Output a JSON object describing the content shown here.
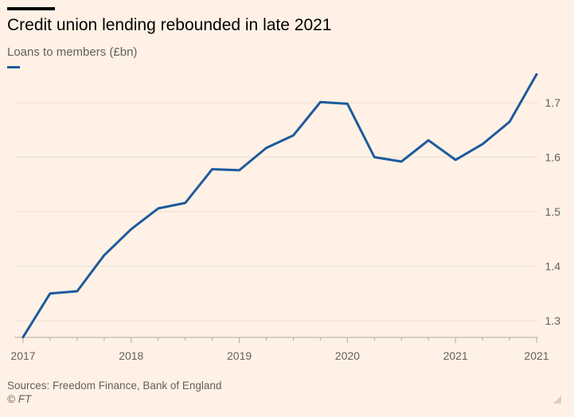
{
  "header": {
    "title": "Credit union lending rebounded in late 2021",
    "subtitle": "Loans to members (£bn)"
  },
  "footer": {
    "source": "Sources: Freedom Finance, Bank of England",
    "credit": "© FT"
  },
  "colors": {
    "background": "#fff1e5",
    "series": "#1d5a9c",
    "grid": "#e9dfd6",
    "tick_text": "#66605c"
  },
  "chart_data": {
    "type": "line",
    "title": "Credit union lending rebounded in late 2021",
    "subtitle": "Loans to members (£bn)",
    "xlabel": "",
    "ylabel": "",
    "x_ticks": [
      "2017",
      "2018",
      "2019",
      "2020",
      "2021",
      "2021"
    ],
    "y_ticks": [
      1.3,
      1.4,
      1.5,
      1.6,
      1.7
    ],
    "ylim": [
      1.27,
      1.75
    ],
    "y_axis_side": "right",
    "grid": true,
    "legend": "top-left swatch",
    "x": [
      "2017 Q1",
      "2017 Q2",
      "2017 Q3",
      "2017 Q4",
      "2018 Q1",
      "2018 Q2",
      "2018 Q3",
      "2018 Q4",
      "2019 Q1",
      "2019 Q2",
      "2019 Q3",
      "2019 Q4",
      "2020 Q1",
      "2020 Q2",
      "2020 Q3",
      "2020 Q4",
      "2021 Q1",
      "2021 Q2",
      "2021 Q3",
      "2021 Q4"
    ],
    "series": [
      {
        "values": [
          1.27,
          1.35,
          1.354,
          1.42,
          1.468,
          1.506,
          1.516,
          1.578,
          1.576,
          1.617,
          1.64,
          1.701,
          1.698,
          1.6,
          1.592,
          1.631,
          1.595,
          1.624,
          1.665,
          1.752
        ]
      }
    ]
  }
}
